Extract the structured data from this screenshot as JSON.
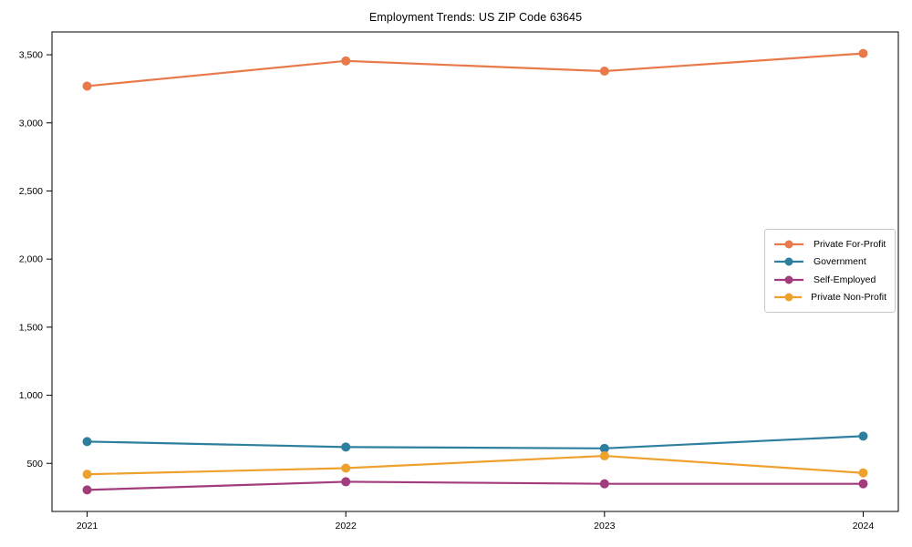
{
  "title": "Employment Trends: US ZIP Code 63645",
  "chart_data": {
    "type": "line",
    "title": "Employment Trends: US ZIP Code 63645",
    "categories": [
      "2021",
      "2022",
      "2023",
      "2024"
    ],
    "series": [
      {
        "name": "Private For-Profit",
        "color": "#E8794A",
        "values": [
          3270,
          3455,
          3380,
          3510
        ]
      },
      {
        "name": "Government",
        "color": "#2E7F9E",
        "values": [
          660,
          620,
          610,
          700
        ]
      },
      {
        "name": "Self-Employed",
        "color": "#A33C7C",
        "values": [
          305,
          365,
          350,
          350
        ]
      },
      {
        "name": "Private Non-Profit",
        "color": "#EFA12E",
        "values": [
          420,
          465,
          555,
          430
        ]
      }
    ],
    "xlabel": "",
    "ylabel": "",
    "ylim": [
      147,
      3668
    ],
    "yticks": [
      500,
      1000,
      1500,
      2000,
      2500,
      3000,
      3500
    ],
    "ytick_labels": [
      "500",
      "1,000",
      "1,500",
      "2,000",
      "2,500",
      "3,000",
      "3,500"
    ],
    "xtick_labels": [
      "2021",
      "2022",
      "2023",
      "2024"
    ],
    "grid": false,
    "legend_position": "center right",
    "axis_color": "#000000",
    "background_color": "#ffffff"
  }
}
